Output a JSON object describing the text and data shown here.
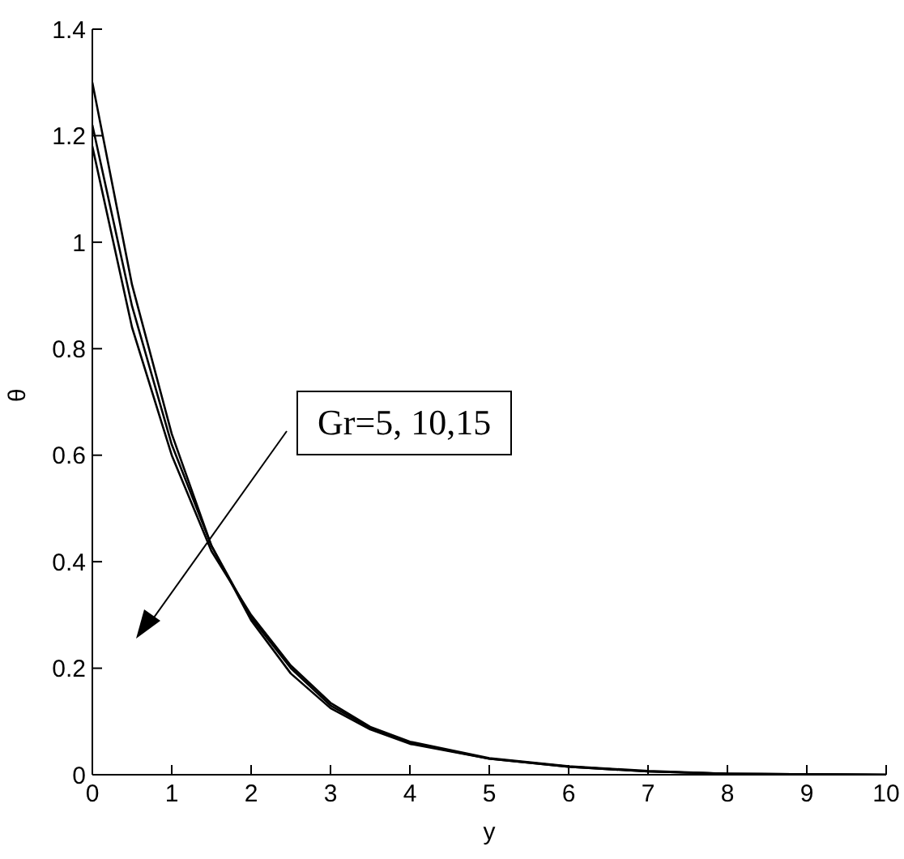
{
  "chart_data": {
    "type": "line",
    "xlabel": "y",
    "ylabel": "θ",
    "xlim": [
      0,
      10
    ],
    "ylim": [
      0,
      1.4
    ],
    "xticks": [
      0,
      1,
      2,
      3,
      4,
      5,
      6,
      7,
      8,
      9,
      10
    ],
    "yticks": [
      0,
      0.2,
      0.4,
      0.6,
      0.8,
      1,
      1.2,
      1.4
    ],
    "grid": false,
    "legend": false,
    "marker": "none",
    "line_style": "solid",
    "annotations": [
      "Gr=5, 10,15"
    ],
    "series": [
      {
        "color": "#000000",
        "x": [
          0,
          0.5,
          1,
          1.5,
          2,
          2.5,
          3,
          3.5,
          4,
          5,
          6,
          7,
          8,
          10
        ],
        "values": [
          1.3,
          0.92,
          0.64,
          0.43,
          0.29,
          0.19,
          0.125,
          0.085,
          0.058,
          0.03,
          0.015,
          0.006,
          0.002,
          0
        ]
      },
      {
        "color": "#000000",
        "x": [
          0,
          0.5,
          1,
          1.5,
          2,
          2.5,
          3,
          3.5,
          4,
          5,
          6,
          7,
          8,
          10
        ],
        "values": [
          1.22,
          0.88,
          0.62,
          0.43,
          0.295,
          0.2,
          0.13,
          0.088,
          0.06,
          0.03,
          0.015,
          0.006,
          0.002,
          0
        ]
      },
      {
        "color": "#000000",
        "x": [
          0,
          0.5,
          1,
          1.5,
          2,
          2.5,
          3,
          3.5,
          4,
          5,
          6,
          7,
          8,
          10
        ],
        "values": [
          1.18,
          0.84,
          0.6,
          0.42,
          0.3,
          0.205,
          0.135,
          0.09,
          0.062,
          0.031,
          0.016,
          0.007,
          0.002,
          0
        ]
      }
    ]
  }
}
